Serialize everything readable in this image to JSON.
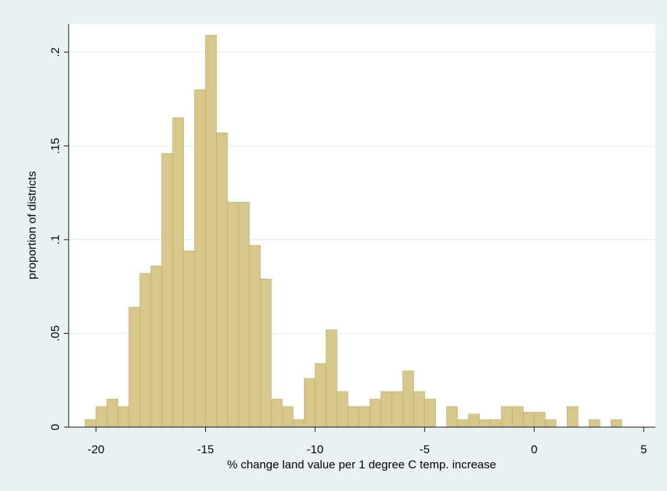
{
  "chart_data": {
    "type": "histogram",
    "xlabel": "% change land value per 1 degree C temp. increase",
    "ylabel": "proportion of districts",
    "bins": [
      -20.5,
      -20,
      -19.5,
      -19,
      -18.5,
      -18,
      -17.5,
      -17,
      -16.5,
      -16,
      -15.5,
      -15,
      -14.5,
      -14,
      -13.5,
      -13,
      -12.5,
      -12,
      -11.5,
      -11,
      -10.5,
      -10,
      -9.5,
      -9,
      -8.5,
      -8,
      -7.5,
      -7,
      -6.5,
      -6,
      -5.5,
      -5,
      -4.5,
      -4,
      -3.5,
      -3,
      -2.5,
      -2,
      -1.5,
      -1,
      -0.5,
      0,
      0.5,
      1,
      1.5,
      2,
      2.5,
      3,
      3.5,
      4
    ],
    "values": [
      0.004,
      0.011,
      0.015,
      0.011,
      0.064,
      0.082,
      0.086,
      0.146,
      0.165,
      0.094,
      0.18,
      0.209,
      0.157,
      0.12,
      0.12,
      0.097,
      0.079,
      0.015,
      0.011,
      0.004,
      0.026,
      0.034,
      0.052,
      0.019,
      0.011,
      0.011,
      0.015,
      0.019,
      0.019,
      0.03,
      0.019,
      0.015,
      0,
      0.011,
      0.004,
      0.007,
      0.004,
      0.004,
      0.011,
      0.011,
      0.008,
      0.008,
      0.004,
      0,
      0.011,
      0,
      0.004,
      0,
      0.004
    ],
    "color": "#d6c78b",
    "xlim": [
      -21.25,
      5.53
    ],
    "ylim": [
      0,
      0.215
    ],
    "xticks": [
      -20,
      -15,
      -10,
      -5,
      0,
      5
    ],
    "yticks": [
      0,
      {
        "value": 0.05,
        "label": ".05"
      },
      {
        "value": 0.1,
        "label": ".1"
      },
      {
        "value": 0.15,
        "label": ".15"
      },
      {
        "value": 0.2,
        "label": ".2"
      }
    ],
    "grid": true
  }
}
